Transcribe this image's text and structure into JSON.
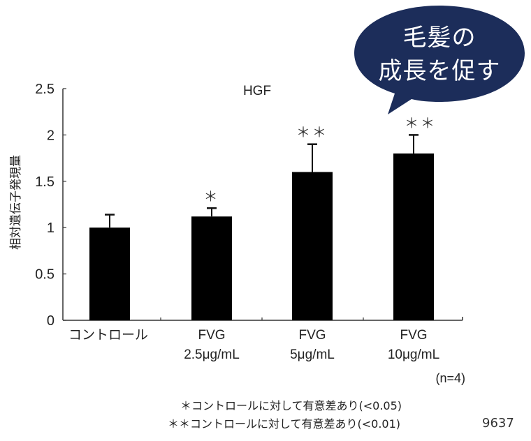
{
  "chart_data": {
    "type": "bar",
    "title": "HGF",
    "xlabel": "",
    "ylabel": "相対遺伝子発現量",
    "ylim": [
      0,
      2.5
    ],
    "yticks": [
      0,
      0.5,
      1,
      1.5,
      2,
      2.5
    ],
    "ytick_labels": [
      "0",
      "0.5",
      "1",
      "1.5",
      "2",
      "2.5"
    ],
    "grid": false,
    "categories": [
      "コントロール",
      "FVG 2.5μg/mL",
      "FVG 5μg/mL",
      "FVG 10μg/mL"
    ],
    "category_lines": [
      [
        "コントロール"
      ],
      [
        "FVG",
        "2.5μg/mL"
      ],
      [
        "FVG",
        "5μg/mL"
      ],
      [
        "FVG",
        "10μg/mL"
      ]
    ],
    "values": [
      1.0,
      1.12,
      1.6,
      1.8
    ],
    "error_upper": [
      0.14,
      0.09,
      0.3,
      0.2
    ],
    "significance": [
      "",
      "*",
      "**",
      "**"
    ],
    "bar_color": "#000000",
    "annotations": [
      "(n=4)"
    ]
  },
  "callout": {
    "line1": "毛髪の",
    "line2": "成長を促す",
    "color": "#1c2d5a"
  },
  "footnotes": [
    "＊コントロールに対して有意差あり(<0.05)",
    "＊＊コントロールに対して有意差あり(<0.01)"
  ],
  "figure_id": "9637"
}
